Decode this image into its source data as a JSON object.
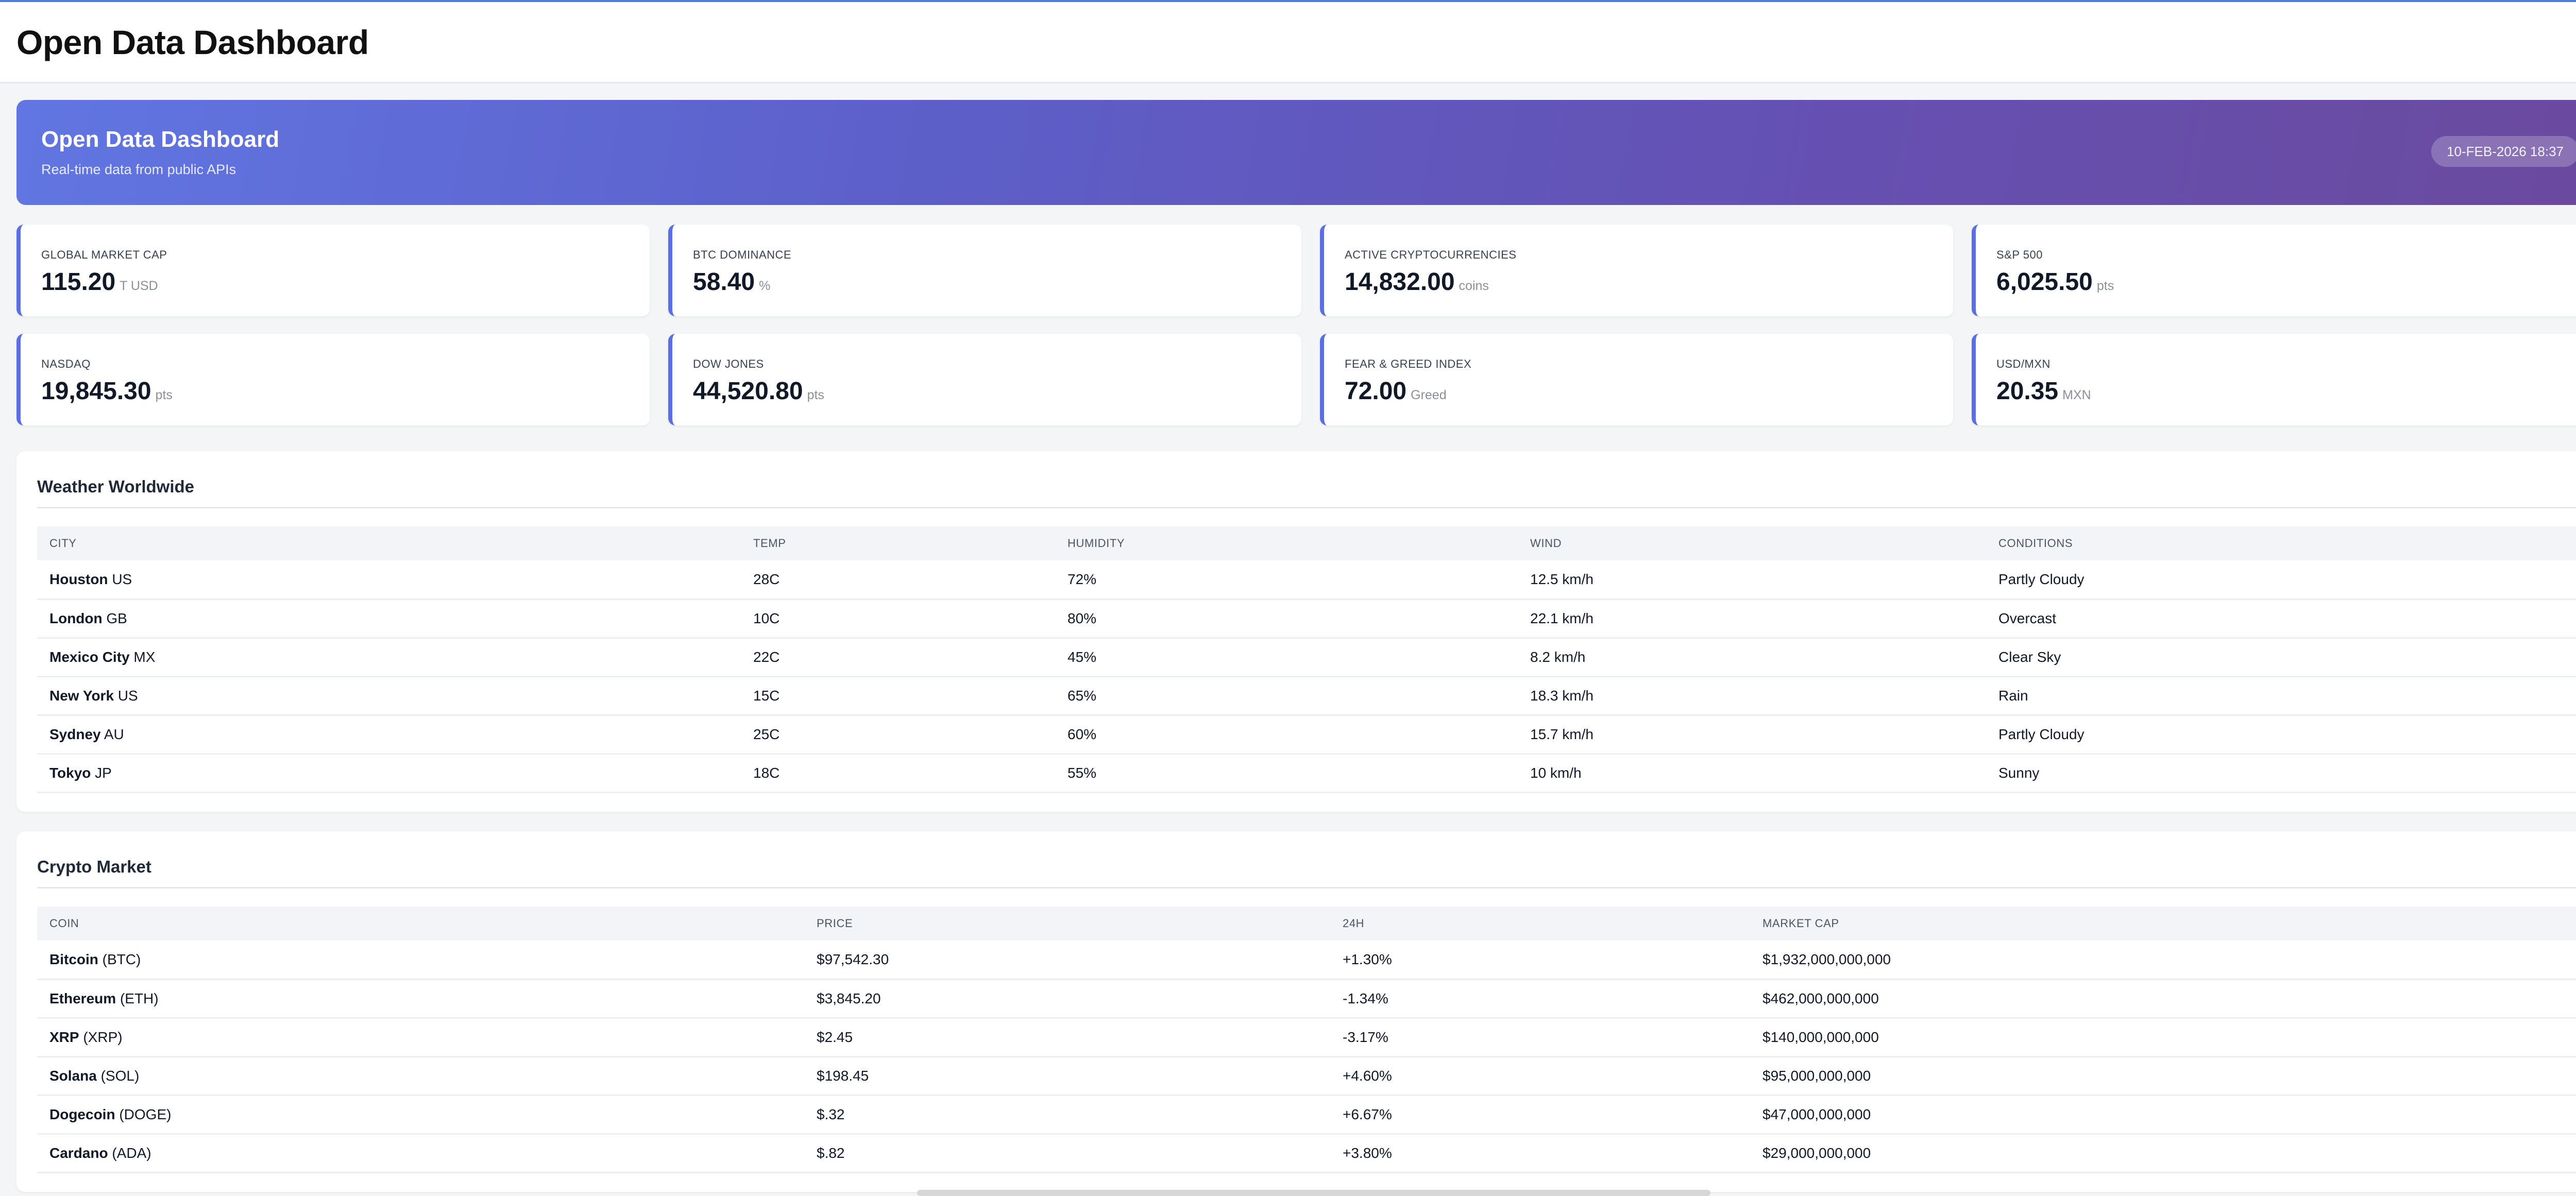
{
  "page": {
    "title": "Open Data Dashboard"
  },
  "hero": {
    "title": "Open Data Dashboard",
    "subtitle": "Real-time data from public APIs",
    "date": "10-FEB-2026 18:37"
  },
  "stats": [
    {
      "label": "GLOBAL MARKET CAP",
      "value": "115.20",
      "unit": "T USD"
    },
    {
      "label": "BTC DOMINANCE",
      "value": "58.40",
      "unit": "%"
    },
    {
      "label": "ACTIVE CRYPTOCURRENCIES",
      "value": "14,832.00",
      "unit": "coins"
    },
    {
      "label": "S&P 500",
      "value": "6,025.50",
      "unit": "pts"
    },
    {
      "label": "NASDAQ",
      "value": "19,845.30",
      "unit": "pts"
    },
    {
      "label": "DOW JONES",
      "value": "44,520.80",
      "unit": "pts"
    },
    {
      "label": "FEAR & GREED INDEX",
      "value": "72.00",
      "unit": "Greed"
    },
    {
      "label": "USD/MXN",
      "value": "20.35",
      "unit": "MXN"
    }
  ],
  "weather": {
    "title": "Weather Worldwide",
    "columns": [
      "CITY",
      "TEMP",
      "HUMIDITY",
      "WIND",
      "CONDITIONS"
    ],
    "rows": [
      {
        "city": "Houston",
        "country": "US",
        "temp": "28C",
        "humidity": "72%",
        "wind": "12.5 km/h",
        "conditions": "Partly Cloudy"
      },
      {
        "city": "London",
        "country": "GB",
        "temp": "10C",
        "humidity": "80%",
        "wind": "22.1 km/h",
        "conditions": "Overcast"
      },
      {
        "city": "Mexico City",
        "country": "MX",
        "temp": "22C",
        "humidity": "45%",
        "wind": "8.2 km/h",
        "conditions": "Clear Sky"
      },
      {
        "city": "New York",
        "country": "US",
        "temp": "15C",
        "humidity": "65%",
        "wind": "18.3 km/h",
        "conditions": "Rain"
      },
      {
        "city": "Sydney",
        "country": "AU",
        "temp": "25C",
        "humidity": "60%",
        "wind": "15.7 km/h",
        "conditions": "Partly Cloudy"
      },
      {
        "city": "Tokyo",
        "country": "JP",
        "temp": "18C",
        "humidity": "55%",
        "wind": "10 km/h",
        "conditions": "Sunny"
      }
    ]
  },
  "crypto": {
    "title": "Crypto Market",
    "columns": [
      "COIN",
      "PRICE",
      "24H",
      "MARKET CAP"
    ],
    "rows": [
      {
        "name": "Bitcoin",
        "symbol": "(BTC)",
        "price": "$97,542.30",
        "change": "+1.30%",
        "direction": "up",
        "market_cap": "$1,932,000,000,000"
      },
      {
        "name": "Ethereum",
        "symbol": "(ETH)",
        "price": "$3,845.20",
        "change": "-1.34%",
        "direction": "down",
        "market_cap": "$462,000,000,000"
      },
      {
        "name": "XRP",
        "symbol": "(XRP)",
        "price": "$2.45",
        "change": "-3.17%",
        "direction": "down",
        "market_cap": "$140,000,000,000"
      },
      {
        "name": "Solana",
        "symbol": "(SOL)",
        "price": "$198.45",
        "change": "+4.60%",
        "direction": "up",
        "market_cap": "$95,000,000,000"
      },
      {
        "name": "Dogecoin",
        "symbol": "(DOGE)",
        "price": "$.32",
        "change": "+6.67%",
        "direction": "up",
        "market_cap": "$47,000,000,000"
      },
      {
        "name": "Cardano",
        "symbol": "(ADA)",
        "price": "$.82",
        "change": "+3.80%",
        "direction": "up",
        "market_cap": "$29,000,000,000"
      }
    ]
  },
  "colors": {
    "accent": "#5b6fe0",
    "hero_gradient_start": "#6176e2",
    "hero_gradient_end": "#6a4a9e",
    "positive": "#16a34a",
    "negative": "#dc2626"
  }
}
